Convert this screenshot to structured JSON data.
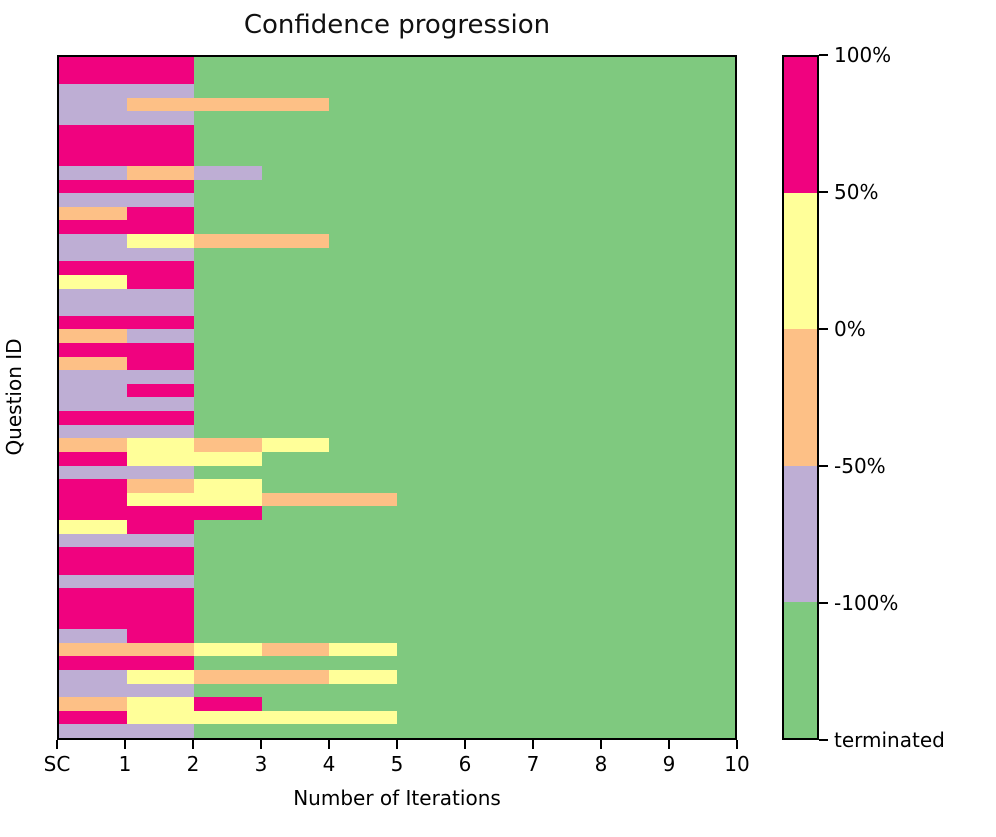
{
  "title": "Confidence progression",
  "x_axis": {
    "label": "Number of Iterations",
    "ticks": [
      "SC",
      "1",
      "2",
      "3",
      "4",
      "5",
      "6",
      "7",
      "8",
      "9",
      "10"
    ]
  },
  "y_axis": {
    "label": "Question ID"
  },
  "colorbar": {
    "segments_top_to_bottom": [
      {
        "color": "#f0027f",
        "range": "50% to 100%"
      },
      {
        "color": "#ffff99",
        "range": "0% to 50%"
      },
      {
        "color": "#fdc086",
        "range": "-50% to 0%"
      },
      {
        "color": "#beaed4",
        "range": "-100% to -50%"
      },
      {
        "color": "#7fc97f",
        "range": "terminated"
      }
    ],
    "tick_labels_top_to_bottom": [
      "100%",
      "50%",
      "0%",
      "-50%",
      "-100%",
      "terminated"
    ]
  },
  "chart_data": {
    "type": "heatmap",
    "title": "Confidence progression",
    "xlabel": "Number of Iterations",
    "ylabel": "Question ID",
    "x_columns": [
      "SC",
      "1",
      "2",
      "3",
      "4",
      "5",
      "6",
      "7",
      "8",
      "9"
    ],
    "n_rows": 50,
    "color_map": {
      "M": "#f0027f",
      "Y": "#ffff99",
      "O": "#fdc086",
      "P": "#beaed4",
      "G": "#7fc97f"
    },
    "color_meaning": {
      "M": "confidence 50% to 100%",
      "Y": "confidence 0% to 50%",
      "O": "confidence -50% to 0%",
      "P": "confidence -100% to -50%",
      "G": "terminated"
    },
    "rows": [
      "MMGGGGGGGG",
      "MMGGGGGGGG",
      "PPGGGGGGGG",
      "POOOGGGGGG",
      "PPGGGGGGGG",
      "MMGGGGGGGG",
      "MMGGGGGGGG",
      "MMGGGGGGGG",
      "POPGGGGGGG",
      "MMGGGGGGGG",
      "PPGGGGGGGG",
      "OMGGGGGGGG",
      "MMGGGGGGGG",
      "PYOOGGGGGG",
      "PPGGGGGGGG",
      "MMGGGGGGGG",
      "YMGGGGGGGG",
      "PPGGGGGGGG",
      "PPGGGGGGGG",
      "MMGGGGGGGG",
      "OPGGGGGGGG",
      "MMGGGGGGGG",
      "OMGGGGGGGG",
      "PPGGGGGGGG",
      "PMGGGGGGGG",
      "PPGGGGGGGG",
      "MMGGGGGGGG",
      "PPGGGGGGGG",
      "OYOYGGGGGG",
      "MYYGGGGGGG",
      "PPGGGGGGGG",
      "MOYGGGGGGG",
      "MYYOOGGGGG",
      "MMMGGGGGGG",
      "YMGGGGGGGG",
      "PPGGGGGGGG",
      "MMGGGGGGGG",
      "MMGGGGGGGG",
      "PPGGGGGGGG",
      "MMGGGGGGGG",
      "MMGGGGGGGG",
      "MMGGGGGGGG",
      "PMGGGGGGGG",
      "OOYOYGGGGG",
      "MMGGGGGGGG",
      "PYOOYGGGGG",
      "PPGGGGGGGG",
      "OYMGGGGGGG",
      "MYYYYGGGGG",
      "PPGGGGGGGG"
    ]
  }
}
